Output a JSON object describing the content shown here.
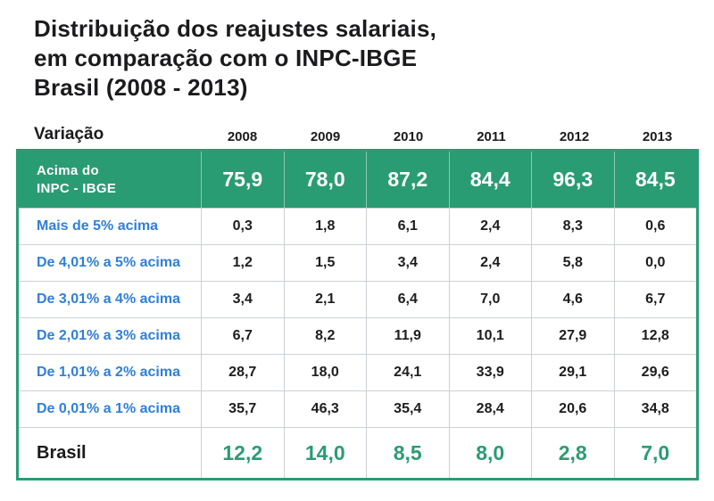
{
  "title": {
    "line1": "Distribuição dos reajustes salariais,",
    "line2": "em comparação com o INPC-IBGE",
    "line3": "Brasil (2008 - 2013)"
  },
  "table": {
    "corner_label": "Variação",
    "years": [
      "2008",
      "2009",
      "2010",
      "2011",
      "2012",
      "2013"
    ],
    "header_row": {
      "label_line1": "Acima do",
      "label_line2": "INPC - IBGE",
      "values": [
        "75,9",
        "78,0",
        "87,2",
        "84,4",
        "96,3",
        "84,5"
      ]
    },
    "rows": [
      {
        "label": "Mais de 5% acima",
        "values": [
          "0,3",
          "1,8",
          "6,1",
          "2,4",
          "8,3",
          "0,6"
        ]
      },
      {
        "label": "De 4,01% a 5% acima",
        "values": [
          "1,2",
          "1,5",
          "3,4",
          "2,4",
          "5,8",
          "0,0"
        ]
      },
      {
        "label": "De 3,01% a 4% acima",
        "values": [
          "3,4",
          "2,1",
          "6,4",
          "7,0",
          "4,6",
          "6,7"
        ]
      },
      {
        "label": "De 2,01% a 3% acima",
        "values": [
          "6,7",
          "8,2",
          "11,9",
          "10,1",
          "27,9",
          "12,8"
        ]
      },
      {
        "label": "De 1,01% a 2% acima",
        "values": [
          "28,7",
          "18,0",
          "24,1",
          "33,9",
          "29,1",
          "29,6"
        ]
      },
      {
        "label": "De 0,01% a 1% acima",
        "values": [
          "35,7",
          "46,3",
          "35,4",
          "28,4",
          "20,6",
          "34,8"
        ]
      }
    ],
    "footer_row": {
      "label": "Brasil",
      "values": [
        "12,2",
        "14,0",
        "8,5",
        "8,0",
        "2,8",
        "7,0"
      ]
    }
  },
  "colors": {
    "green": "#2a9c73",
    "blue": "#2f7fd8",
    "dark_text": "#1b1b1d",
    "divider_gray": "#ccd0d6"
  },
  "chart_data": {
    "type": "table",
    "title": "Distribuição dos reajustes salariais, em comparação com o INPC-IBGE Brasil (2008 - 2013)",
    "columns": [
      "Variação",
      "2008",
      "2009",
      "2010",
      "2011",
      "2012",
      "2013"
    ],
    "rows": [
      {
        "label": "Acima do INPC - IBGE",
        "values": [
          75.9,
          78.0,
          87.2,
          84.4,
          96.3,
          84.5
        ]
      },
      {
        "label": "Mais de 5% acima",
        "values": [
          0.3,
          1.8,
          6.1,
          2.4,
          8.3,
          0.6
        ]
      },
      {
        "label": "De 4,01% a 5% acima",
        "values": [
          1.2,
          1.5,
          3.4,
          2.4,
          5.8,
          0.0
        ]
      },
      {
        "label": "De 3,01% a 4% acima",
        "values": [
          3.4,
          2.1,
          6.4,
          7.0,
          4.6,
          6.7
        ]
      },
      {
        "label": "De 2,01% a 3% acima",
        "values": [
          6.7,
          8.2,
          11.9,
          10.1,
          27.9,
          12.8
        ]
      },
      {
        "label": "De 1,01% a 2% acima",
        "values": [
          28.7,
          18.0,
          24.1,
          33.9,
          29.1,
          29.6
        ]
      },
      {
        "label": "De 0,01% a 1% acima",
        "values": [
          35.7,
          46.3,
          35.4,
          28.4,
          20.6,
          34.8
        ]
      },
      {
        "label": "Brasil",
        "values": [
          12.2,
          14.0,
          8.5,
          8.0,
          2.8,
          7.0
        ]
      }
    ]
  }
}
